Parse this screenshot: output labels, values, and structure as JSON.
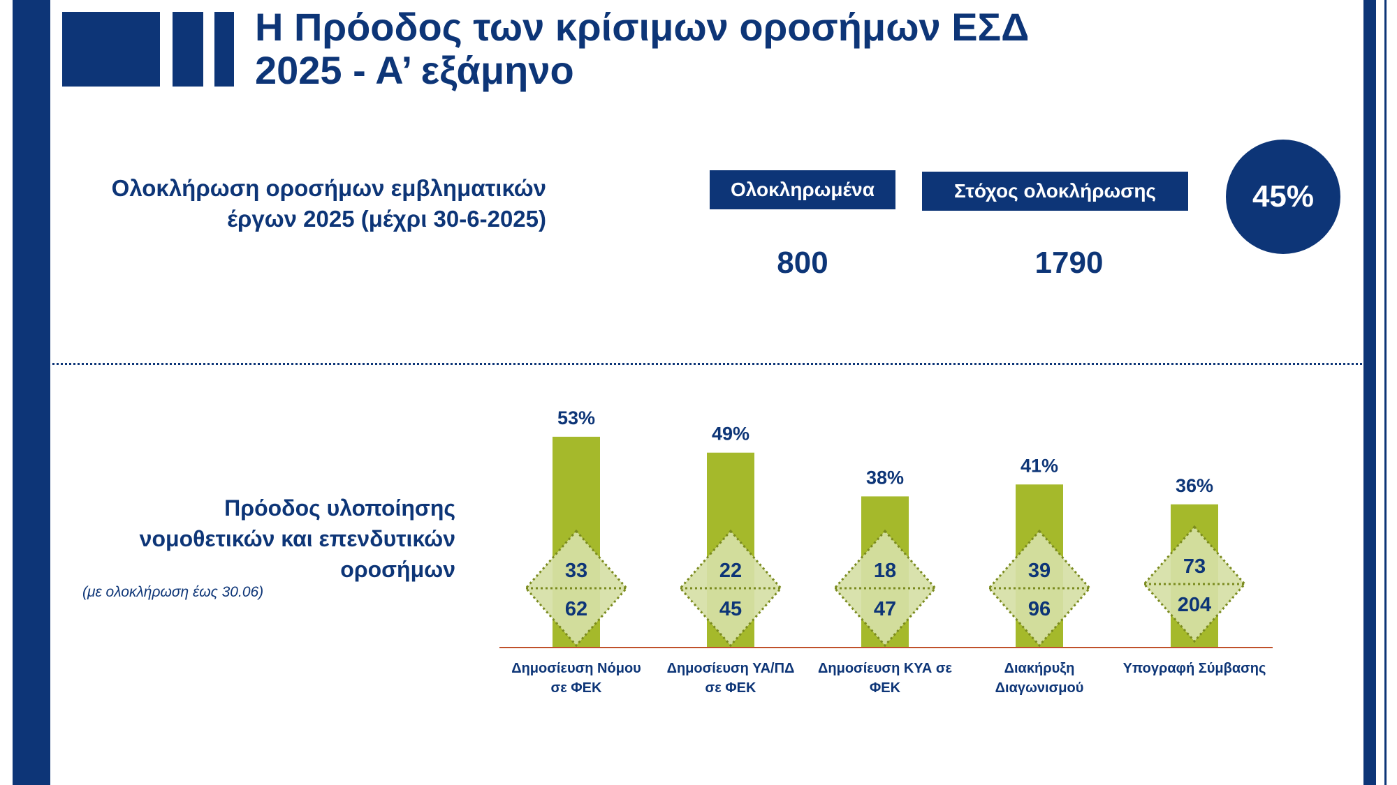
{
  "header": {
    "title_line1": "Η Πρόοδος των κρίσιμων οροσήμων ΕΣΔ",
    "title_line2": "2025 - Α’ εξάμηνο"
  },
  "summary": {
    "label_line1": "Ολοκλήρωση οροσήμων εμβληματικών",
    "label_line2": "έργων 2025 (μέχρι 30-6-2025)",
    "completed_label": "Ολοκληρωμένα",
    "target_label": "Στόχος ολοκλήρωσης",
    "completed_value": "800",
    "target_value": "1790",
    "percent": "45%"
  },
  "colors": {
    "navy": "#0d3577",
    "bar_green": "#a5b92b",
    "diamond_fill": "#d6e0a6",
    "diamond_stroke": "#7a8a1e",
    "baseline": "#c0502a"
  },
  "chart_section": {
    "title_line1": "Πρόοδος υλοποίησης",
    "title_line2": "νομοθετικών  και επενδυτικών",
    "title_line3": "οροσήμων",
    "note": "(με ολοκλήρωση έως 30.06)"
  },
  "chart_data": {
    "type": "bar",
    "categories": [
      [
        "Δημοσίευση Νόμου",
        "σε ΦΕΚ"
      ],
      [
        "Δημοσίευση ΥΑ/ΠΔ",
        "σε ΦΕΚ"
      ],
      [
        "Δημοσίευση ΚΥΑ σε",
        "ΦΕΚ"
      ],
      [
        "Διακήρυξη",
        "Διαγωνισμού"
      ],
      [
        "Υπογραφή Σύμβασης",
        ""
      ]
    ],
    "values": [
      53,
      49,
      38,
      41,
      36
    ],
    "value_labels": [
      "53%",
      "49%",
      "38%",
      "41%",
      "36%"
    ],
    "completed": [
      "33",
      "22",
      "18",
      "39",
      "73"
    ],
    "targets": [
      "62",
      "45",
      "47",
      "96",
      "204"
    ],
    "ylim": [
      0,
      60
    ]
  }
}
